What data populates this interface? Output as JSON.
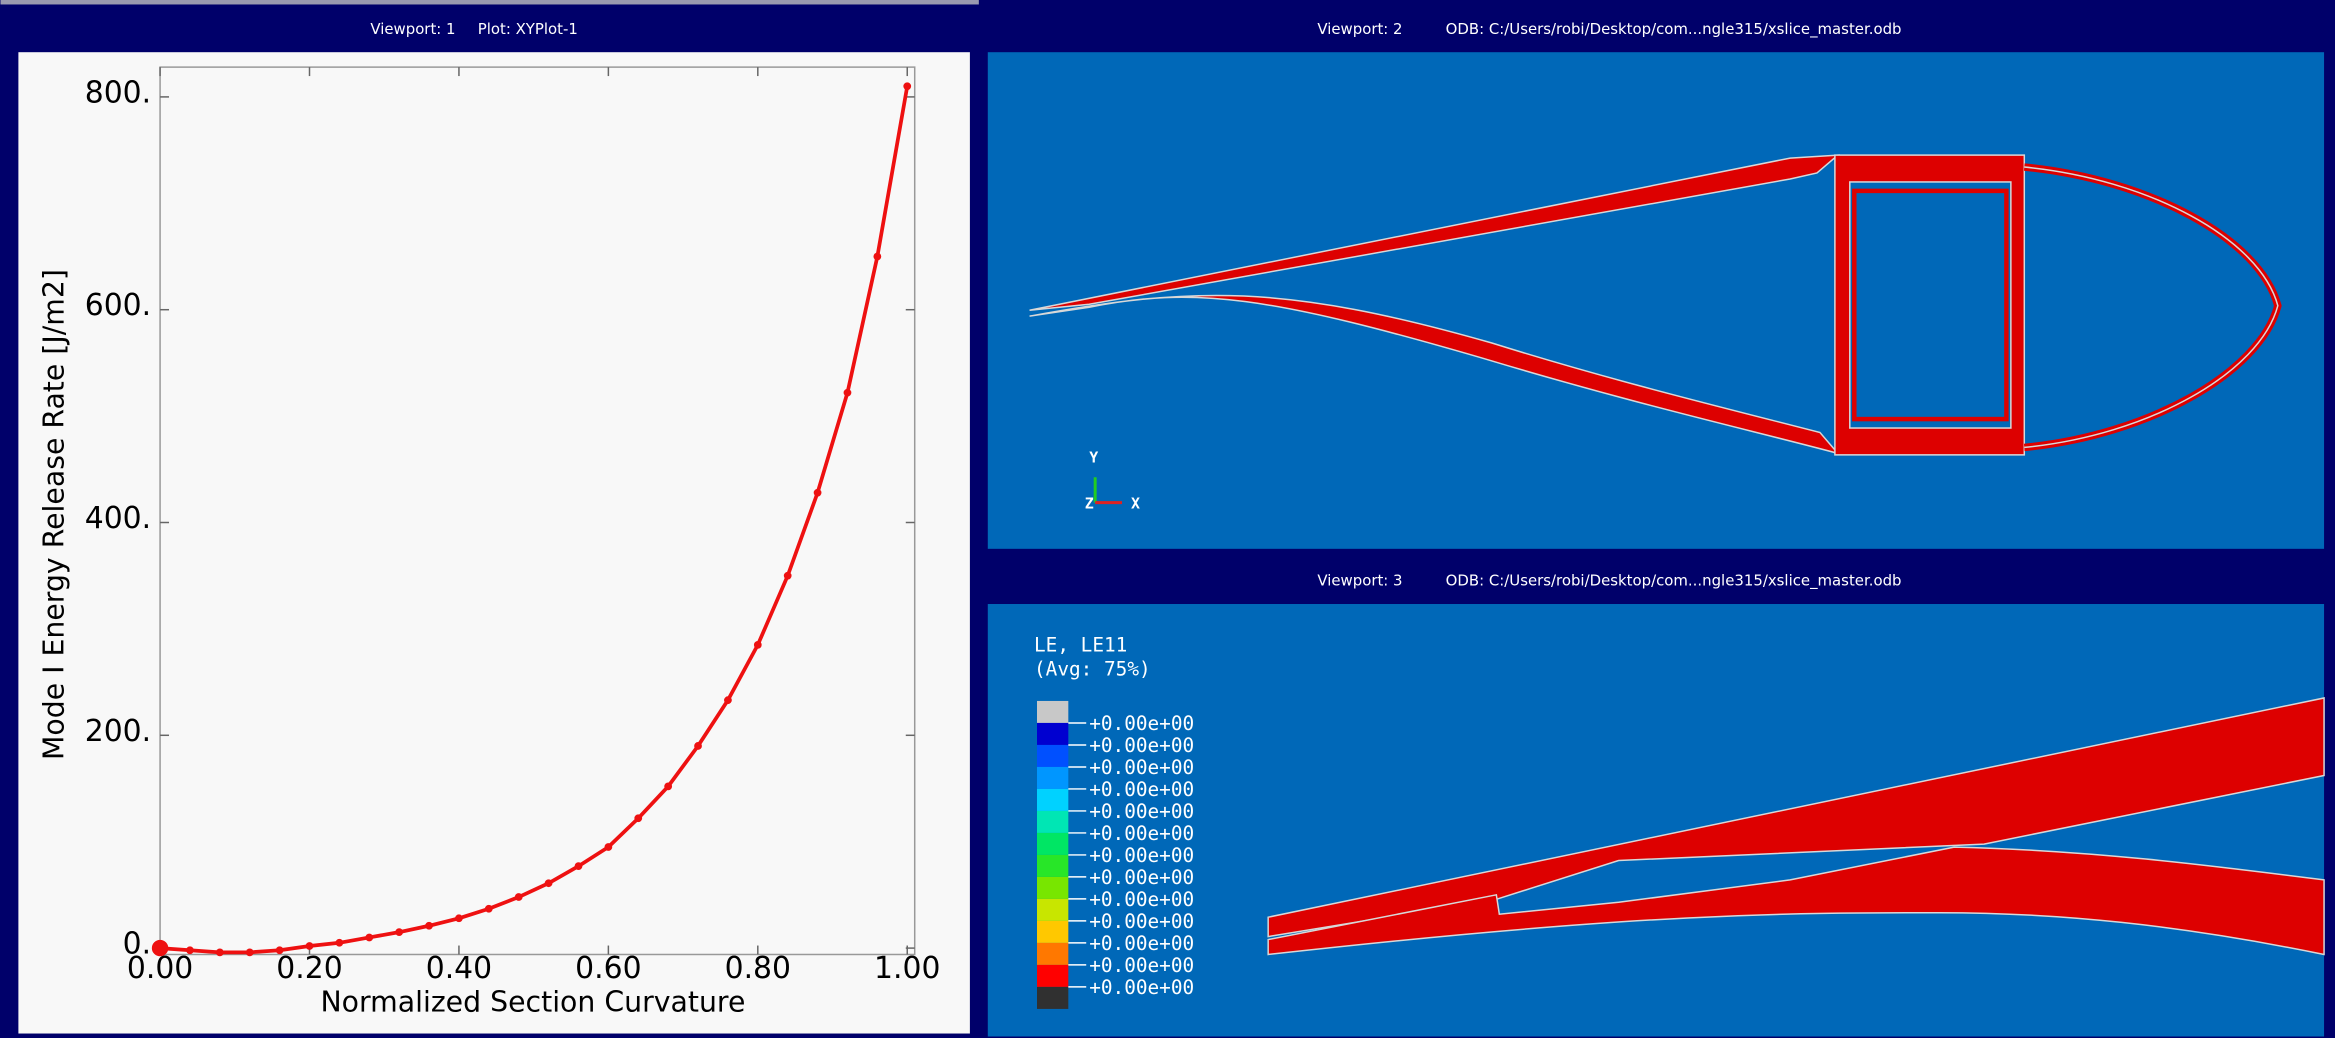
{
  "viewports": [
    {
      "label": "Viewport: 1",
      "name": "Plot: XYPlot-1"
    },
    {
      "label": "Viewport: 2",
      "name": "ODB: C:/Users/robi/Desktop/com...ngle315/xslice_master.odb"
    },
    {
      "label": "Viewport: 3",
      "name": "ODB: C:/Users/robi/Desktop/com...ngle315/xslice_master.odb"
    }
  ],
  "triad": {
    "y": "Y",
    "z": "Z",
    "x": "X"
  },
  "legend": {
    "title": "LE, LE11",
    "subtitle": "(Avg: 75%)",
    "labels": [
      "+0.00e+00",
      "+0.00e+00",
      "+0.00e+00",
      "+0.00e+00",
      "+0.00e+00",
      "+0.00e+00",
      "+0.00e+00",
      "+0.00e+00",
      "+0.00e+00",
      "+0.00e+00",
      "+0.00e+00",
      "+0.00e+00",
      "+0.00e+00"
    ],
    "colors": [
      "#c8c8c8",
      "#0000d0",
      "#0050ff",
      "#0096ff",
      "#00d2ff",
      "#00e6b4",
      "#00e664",
      "#28e628",
      "#78e600",
      "#c8e600",
      "#ffc800",
      "#ff7800",
      "#ff0000",
      "#303030"
    ]
  },
  "chart_data": {
    "type": "line",
    "x_label": "Normalized Section Curvature",
    "y_label": "Mode I Energy Release Rate [J/m2]",
    "x": [
      0,
      0.04,
      0.08,
      0.12,
      0.16,
      0.2,
      0.24,
      0.28,
      0.32,
      0.36,
      0.4,
      0.44,
      0.48,
      0.52,
      0.56,
      0.6,
      0.64,
      0.68,
      0.72,
      0.76,
      0.8,
      0.84,
      0.88,
      0.92,
      0.96,
      1.0
    ],
    "series": [
      {
        "color": "#ee1111",
        "values": [
          0,
          -2,
          -4,
          -4,
          -2,
          2,
          5,
          10,
          15,
          21,
          28,
          37,
          48,
          61,
          77,
          95,
          122,
          152,
          190,
          233,
          285,
          350,
          428,
          522,
          650,
          810
        ]
      }
    ],
    "xlim": [
      0,
      1.01
    ],
    "ylim": [
      -6,
      828
    ],
    "xticks": [
      {
        "value": 0,
        "label": "0.00"
      },
      {
        "value": 0.2,
        "label": "0.20"
      },
      {
        "value": 0.4,
        "label": "0.40"
      },
      {
        "value": 0.6,
        "label": "0.60"
      },
      {
        "value": 0.8,
        "label": "0.80"
      },
      {
        "value": 1.0,
        "label": "1.00"
      }
    ],
    "yticks": [
      {
        "value": 0,
        "label": "0."
      },
      {
        "value": 200,
        "label": "200."
      },
      {
        "value": 400,
        "label": "400."
      },
      {
        "value": 600,
        "label": "600."
      },
      {
        "value": 800,
        "label": "800."
      }
    ]
  }
}
